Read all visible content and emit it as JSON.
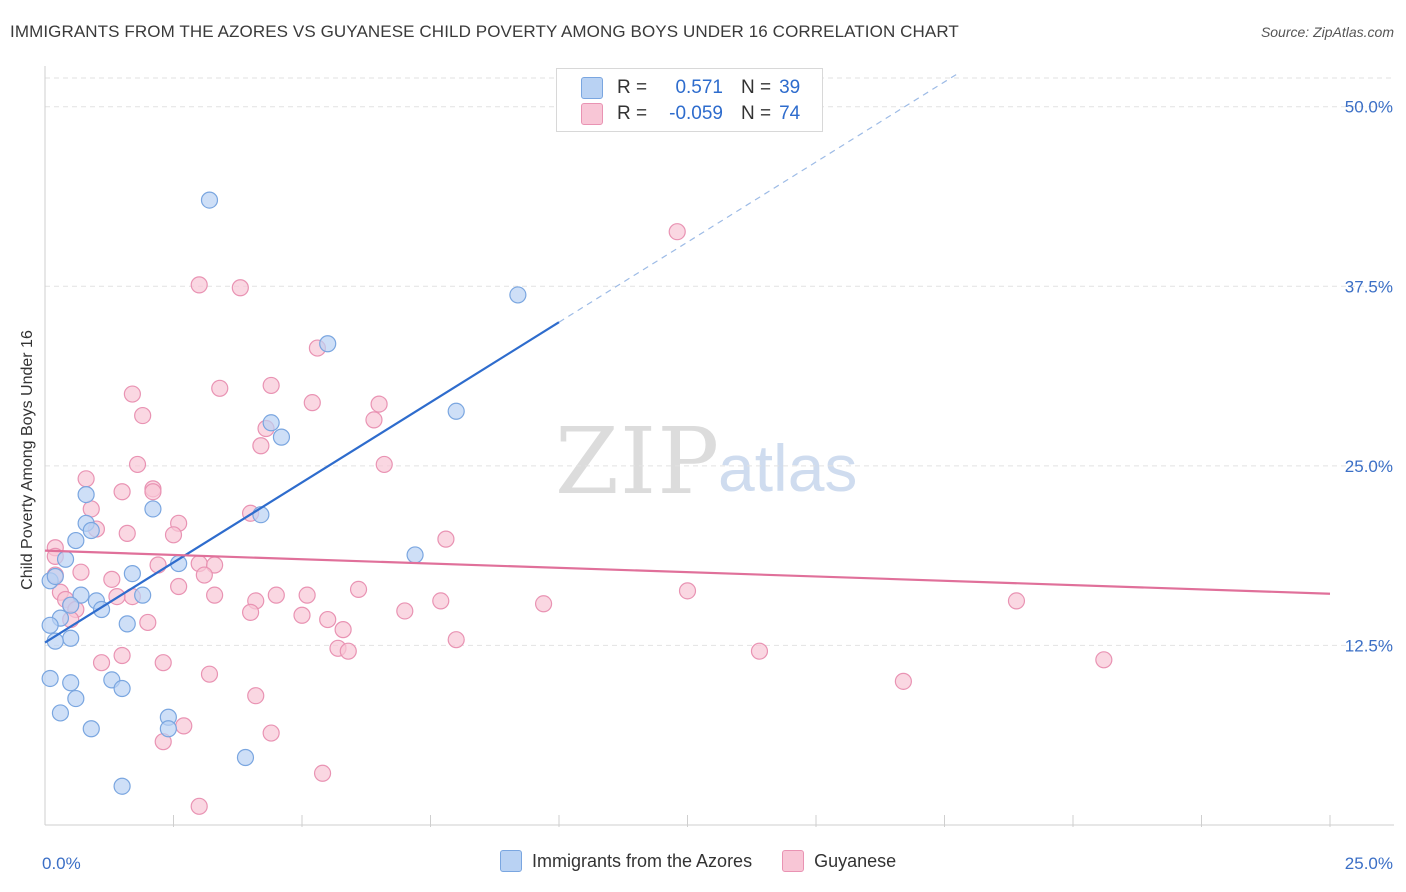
{
  "title": "IMMIGRANTS FROM THE AZORES VS GUYANESE CHILD POVERTY AMONG BOYS UNDER 16 CORRELATION CHART",
  "source": "Source: ZipAtlas.com",
  "watermark": {
    "zip": "ZIP",
    "atlas": "atlas"
  },
  "stats": {
    "r_label": "R =",
    "n_label": "N =",
    "series1": {
      "r": "0.571",
      "n": "39"
    },
    "series2": {
      "r": "-0.059",
      "n": "74"
    }
  },
  "legend": {
    "series1": "Immigrants from the Azores",
    "series2": "Guyanese"
  },
  "colors": {
    "blue_fill": "#b9d2f3",
    "blue_stroke": "#7aa6e0",
    "blue_line": "#2e6ccd",
    "pink_fill": "#f8c6d6",
    "pink_stroke": "#e993b3",
    "pink_line": "#e0709a",
    "tick_text": "#3b6fc6"
  },
  "chart_data": {
    "type": "scatter",
    "title": "IMMIGRANTS FROM THE AZORES VS GUYANESE CHILD POVERTY AMONG BOYS UNDER 16 CORRELATION CHART",
    "xlabel": "",
    "ylabel": "Child Poverty Among Boys Under 16",
    "xlim": [
      0,
      25
    ],
    "ylim": [
      0,
      52
    ],
    "x_tick_labels": [
      {
        "value": 0,
        "label": "0.0%"
      },
      {
        "value": 25,
        "label": "25.0%"
      }
    ],
    "y_tick_labels": [
      {
        "value": 12.5,
        "label": "12.5%"
      },
      {
        "value": 25,
        "label": "25.0%"
      },
      {
        "value": 37.5,
        "label": "37.5%"
      },
      {
        "value": 50,
        "label": "50.0%"
      }
    ],
    "grid": true,
    "series": [
      {
        "name": "Immigrants from the Azores",
        "color": "#2e6ccd",
        "trend": {
          "x0": 0.0,
          "y0": 12.7,
          "x1": 10.0,
          "y1": 35.0,
          "dash_to_x": 17.8,
          "dash_to_y": 52.4
        },
        "points": [
          [
            3.2,
            43.5
          ],
          [
            9.2,
            36.9
          ],
          [
            5.5,
            33.5
          ],
          [
            8.0,
            28.8
          ],
          [
            4.4,
            28.0
          ],
          [
            4.6,
            27.0
          ],
          [
            0.8,
            23.0
          ],
          [
            2.1,
            22.0
          ],
          [
            4.2,
            21.6
          ],
          [
            0.8,
            21.0
          ],
          [
            0.9,
            20.5
          ],
          [
            0.6,
            19.8
          ],
          [
            7.2,
            18.8
          ],
          [
            0.4,
            18.5
          ],
          [
            2.6,
            18.2
          ],
          [
            0.1,
            17.0
          ],
          [
            1.7,
            17.5
          ],
          [
            0.7,
            16.0
          ],
          [
            1.9,
            16.0
          ],
          [
            1.0,
            15.6
          ],
          [
            0.5,
            15.3
          ],
          [
            1.1,
            15.0
          ],
          [
            0.3,
            14.4
          ],
          [
            0.1,
            13.9
          ],
          [
            1.6,
            14.0
          ],
          [
            0.5,
            13.0
          ],
          [
            0.2,
            12.8
          ],
          [
            0.1,
            10.2
          ],
          [
            0.5,
            9.9
          ],
          [
            1.3,
            10.1
          ],
          [
            1.5,
            9.5
          ],
          [
            0.6,
            8.8
          ],
          [
            0.3,
            7.8
          ],
          [
            2.4,
            7.5
          ],
          [
            0.9,
            6.7
          ],
          [
            2.4,
            6.7
          ],
          [
            3.9,
            4.7
          ],
          [
            1.5,
            2.7
          ],
          [
            0.2,
            17.3
          ]
        ]
      },
      {
        "name": "Guyanese",
        "color": "#e0709a",
        "trend": {
          "x0": 0.0,
          "y0": 19.1,
          "x1": 25.0,
          "y1": 16.1
        },
        "points": [
          [
            12.3,
            41.3
          ],
          [
            3.0,
            37.6
          ],
          [
            3.8,
            37.4
          ],
          [
            5.3,
            33.2
          ],
          [
            1.7,
            30.0
          ],
          [
            3.4,
            30.4
          ],
          [
            4.4,
            30.6
          ],
          [
            5.2,
            29.4
          ],
          [
            6.5,
            29.3
          ],
          [
            1.9,
            28.5
          ],
          [
            6.4,
            28.2
          ],
          [
            4.3,
            27.6
          ],
          [
            4.2,
            26.4
          ],
          [
            1.8,
            25.1
          ],
          [
            6.6,
            25.1
          ],
          [
            0.8,
            24.1
          ],
          [
            1.5,
            23.2
          ],
          [
            2.1,
            23.4
          ],
          [
            2.1,
            23.2
          ],
          [
            0.9,
            22.0
          ],
          [
            4.0,
            21.7
          ],
          [
            2.6,
            21.0
          ],
          [
            1.0,
            20.6
          ],
          [
            1.6,
            20.3
          ],
          [
            2.5,
            20.2
          ],
          [
            7.8,
            19.9
          ],
          [
            0.2,
            19.3
          ],
          [
            0.2,
            18.7
          ],
          [
            2.2,
            18.1
          ],
          [
            3.0,
            18.2
          ],
          [
            3.3,
            18.1
          ],
          [
            0.2,
            17.4
          ],
          [
            0.7,
            17.6
          ],
          [
            3.1,
            17.4
          ],
          [
            1.3,
            17.1
          ],
          [
            2.6,
            16.6
          ],
          [
            0.3,
            16.2
          ],
          [
            6.1,
            16.4
          ],
          [
            12.5,
            16.3
          ],
          [
            4.5,
            16.0
          ],
          [
            3.3,
            16.0
          ],
          [
            5.1,
            16.0
          ],
          [
            1.7,
            15.9
          ],
          [
            1.4,
            15.9
          ],
          [
            0.4,
            15.7
          ],
          [
            4.1,
            15.6
          ],
          [
            7.7,
            15.6
          ],
          [
            9.7,
            15.4
          ],
          [
            18.9,
            15.6
          ],
          [
            0.5,
            15.3
          ],
          [
            0.6,
            15.0
          ],
          [
            4.0,
            14.8
          ],
          [
            5.0,
            14.6
          ],
          [
            5.5,
            14.3
          ],
          [
            7.0,
            14.9
          ],
          [
            2.0,
            14.1
          ],
          [
            0.5,
            14.3
          ],
          [
            5.8,
            13.6
          ],
          [
            8.0,
            12.9
          ],
          [
            5.7,
            12.3
          ],
          [
            5.9,
            12.1
          ],
          [
            13.9,
            12.1
          ],
          [
            1.5,
            11.8
          ],
          [
            1.1,
            11.3
          ],
          [
            2.3,
            11.3
          ],
          [
            3.2,
            10.5
          ],
          [
            16.7,
            10.0
          ],
          [
            20.6,
            11.5
          ],
          [
            4.1,
            9.0
          ],
          [
            2.7,
            6.9
          ],
          [
            2.3,
            5.8
          ],
          [
            4.4,
            6.4
          ],
          [
            5.4,
            3.6
          ],
          [
            3.0,
            1.3
          ]
        ]
      }
    ]
  }
}
